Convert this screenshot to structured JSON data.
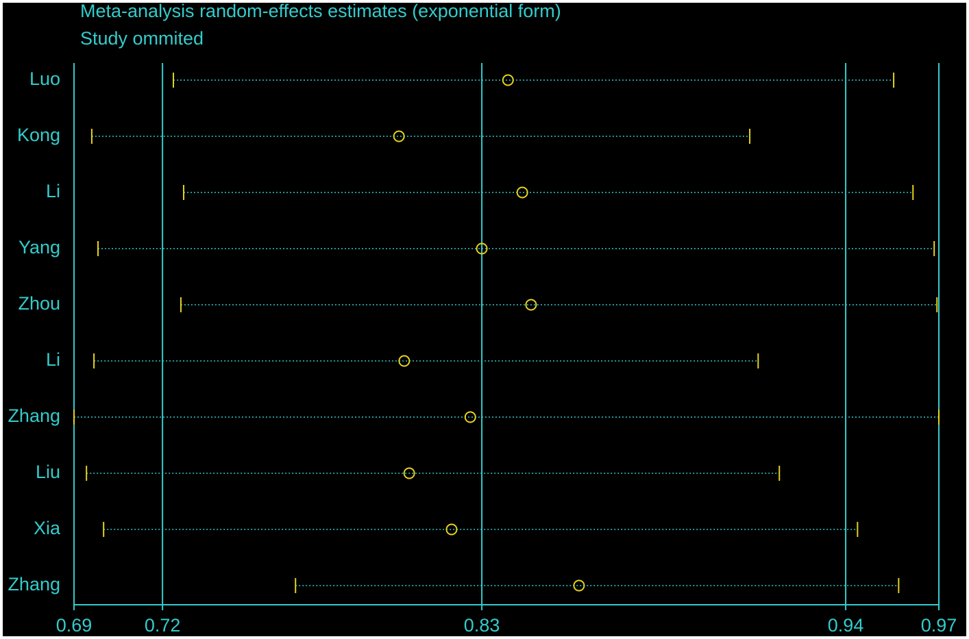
{
  "chart_data": {
    "type": "forest",
    "title": "Meta-analysis random-effects estimates (exponential form)",
    "subtitle": "Study ommited",
    "categories": [
      "Luo",
      "Kong",
      "Li",
      "Yang",
      "Zhou",
      "Li",
      "Zhang",
      "Liu",
      "Xia",
      "Zhang"
    ],
    "estimate": [
      0.8342,
      0.7992,
      0.8388,
      0.8258,
      0.8416,
      0.8009,
      0.8221,
      0.8025,
      0.8161,
      0.857
    ],
    "lower": [
      0.7268,
      0.7006,
      0.7301,
      0.7026,
      0.7292,
      0.7013,
      0.6949,
      0.6989,
      0.7044,
      0.766
    ],
    "upper": [
      0.958,
      0.9118,
      0.9642,
      0.971,
      0.9719,
      0.9145,
      0.9725,
      0.9213,
      0.9464,
      0.9596
    ],
    "xlim": [
      0.6949,
      0.9725
    ],
    "xticks": [
      {
        "value": 0.6949,
        "label": "0.69"
      },
      {
        "value": 0.7233,
        "label": "0.72"
      },
      {
        "value": 0.8258,
        "label": "0.83"
      },
      {
        "value": 0.9426,
        "label": "0.94"
      },
      {
        "value": 0.9725,
        "label": "0.97"
      }
    ],
    "grid": true,
    "axis_color": "#33cccc",
    "marker_color": "#e6d21e"
  }
}
